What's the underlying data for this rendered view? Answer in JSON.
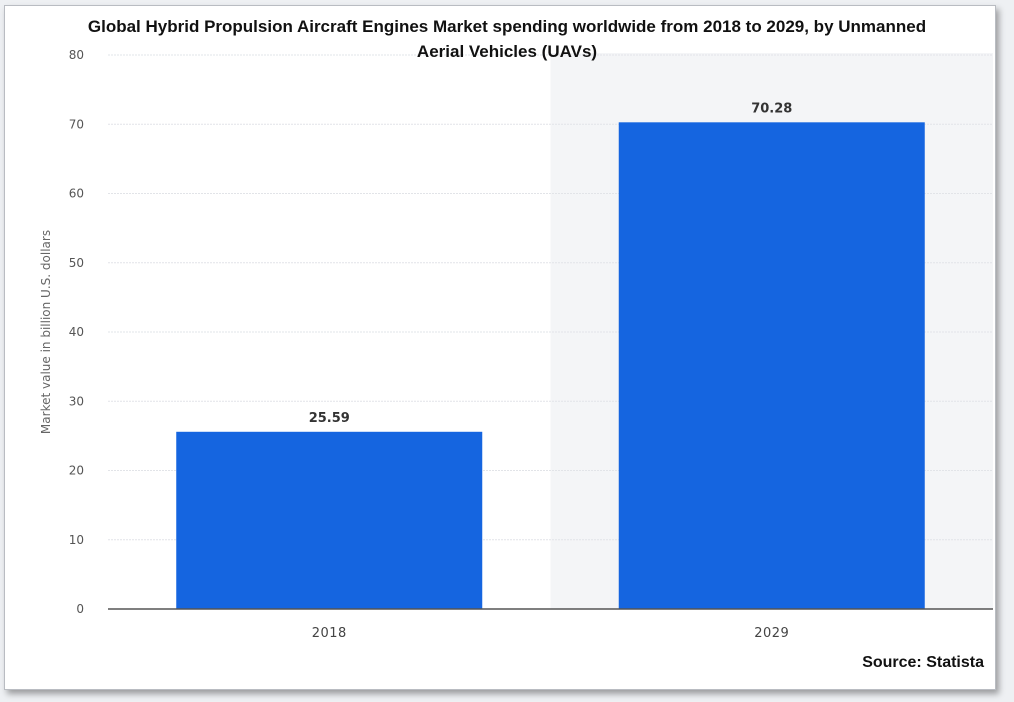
{
  "chart_data": {
    "type": "bar",
    "title_lines": [
      "Global Hybrid Propulsion Aircraft Engines Market spending worldwide from 2018 to 2029, by Unmanned",
      "Aerial Vehicles (UAVs)"
    ],
    "categories": [
      "2018",
      "2029"
    ],
    "values": [
      25.59,
      70.28
    ],
    "value_labels": [
      "25.59",
      "70.28"
    ],
    "xlabel": "",
    "ylabel": "Market value in billion U.S. dollars",
    "ylim": [
      0,
      80
    ],
    "yticks": [
      0,
      10,
      20,
      30,
      40,
      50,
      60,
      70,
      80
    ],
    "ytick_labels": [
      "0",
      "10",
      "20",
      "30",
      "40",
      "50",
      "60",
      "70",
      "80"
    ],
    "grid": true,
    "bar_color": "#1565e0",
    "highlight_band_color": "#f4f5f7",
    "source": "Source: Statista"
  }
}
